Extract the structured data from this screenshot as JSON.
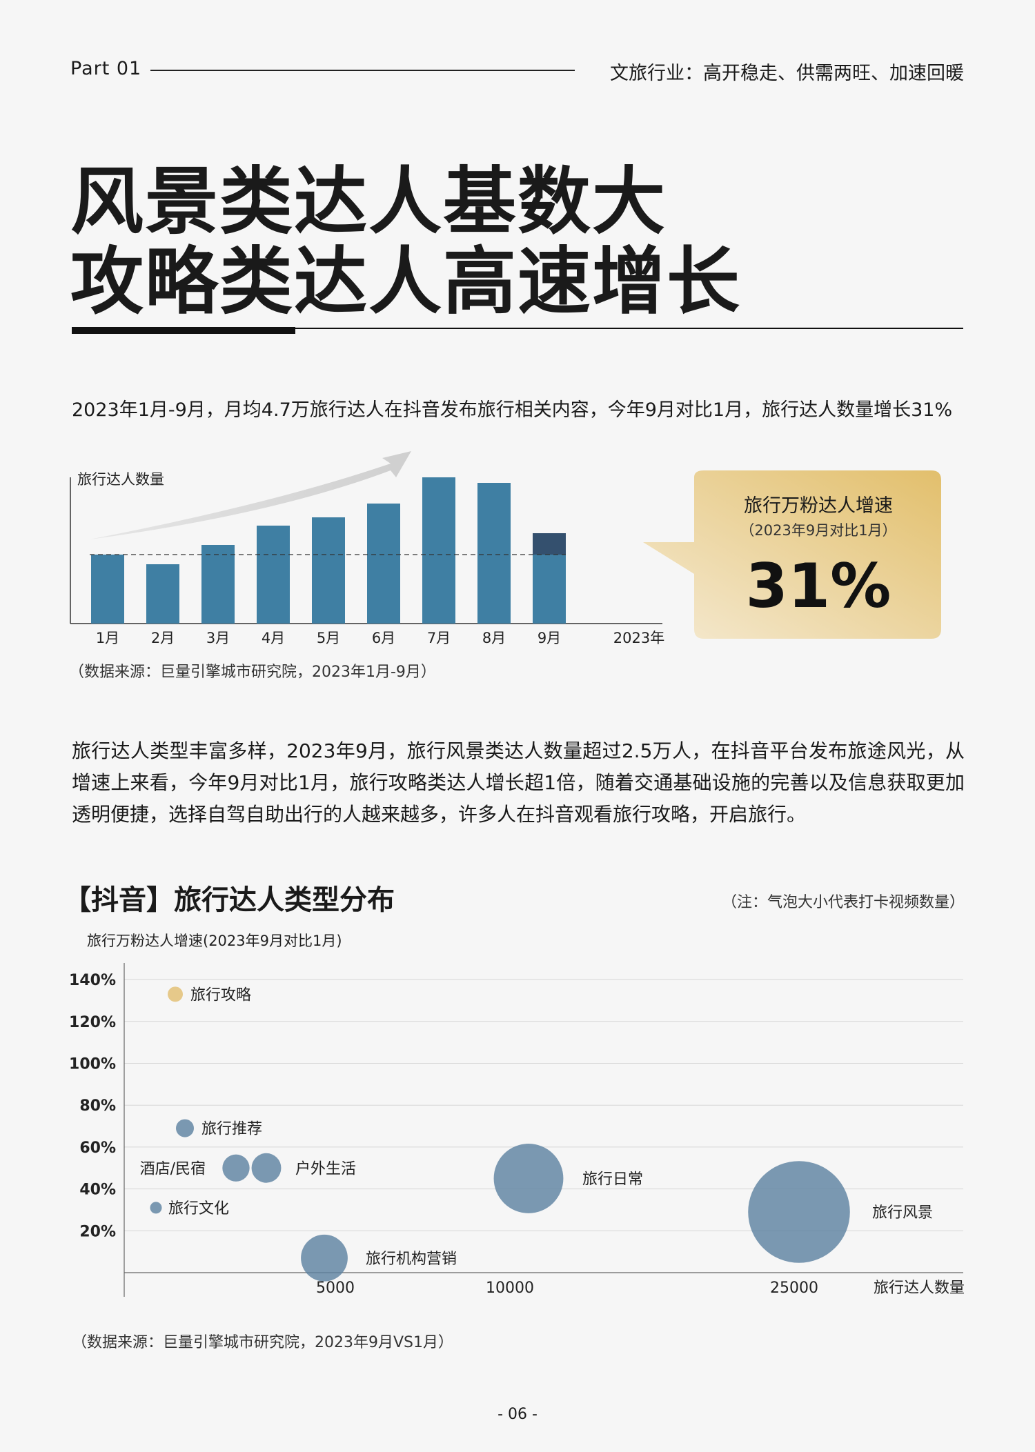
{
  "header": {
    "part": "Part 01",
    "tagline": "文旅行业：高开稳走、供需两旺、加速回暖"
  },
  "title": {
    "line1": "风景类达人基数大",
    "line2": "攻略类达人高速增长"
  },
  "intro": "2023年1月-9月，月均4.7万旅行达人在抖音发布旅行相关内容，今年9月对比1月，旅行达人数量增长31%",
  "chart_data": [
    {
      "type": "bar",
      "ylabel": "旅行达人数量",
      "categories": [
        "1月",
        "2月",
        "3月",
        "4月",
        "5月",
        "6月",
        "7月",
        "8月",
        "9月"
      ],
      "values": [
        100,
        86,
        114,
        142,
        154,
        174,
        212,
        204,
        131
      ],
      "x_extra_label": "2023年",
      "ylim": [
        0,
        220
      ],
      "reference_line": 100,
      "color": "#3f7fa3",
      "highlight_color": "#34506e"
    },
    {
      "type": "scatter",
      "ylabel": "旅行万粉达人增速(2023年9月对比1月)",
      "xlabel": "旅行达人数量",
      "y_ticks": [
        "20%",
        "40%",
        "60%",
        "80%",
        "100%",
        "120%",
        "140%"
      ],
      "x_ticks": [
        "5000",
        "10000",
        "25000"
      ],
      "points": [
        {
          "label": "旅行攻略",
          "y": 133,
          "size": 1,
          "color": "#e6c98a"
        },
        {
          "label": "旅行推荐",
          "y": 69,
          "size": 1.4,
          "color": "#5b81a0"
        },
        {
          "label": "酒店/民宿",
          "y": 50,
          "size": 3.2,
          "color": "#5b81a0"
        },
        {
          "label": "户外生活",
          "y": 50,
          "size": 3.8,
          "color": "#5b81a0"
        },
        {
          "label": "旅行文化",
          "y": 31,
          "size": 0.6,
          "color": "#5b81a0"
        },
        {
          "label": "旅行机构营销",
          "y": 7,
          "size": 9.5,
          "color": "#5b81a0"
        },
        {
          "label": "旅行日常",
          "y": 45,
          "size": 21,
          "color": "#5b81a0"
        },
        {
          "label": "旅行风景",
          "y": 29,
          "size": 45,
          "color": "#5b81a0"
        }
      ]
    }
  ],
  "source1": "（数据来源：巨量引擎城市研究院，2023年1月-9月）",
  "callout": {
    "title": "旅行万粉达人增速",
    "subtitle": "（2023年9月对比1月）",
    "value": "31%"
  },
  "paragraph": "旅行达人类型丰富多样，2023年9月，旅行风景类达人数量超过2.5万人，在抖音平台发布旅途风光，从增速上来看，今年9月对比1月，旅行攻略类达人增长超1倍，随着交通基础设施的完善以及信息获取更加透明便捷，选择自驾自助出行的人越来越多，许多人在抖音观看旅行攻略，开启旅行。",
  "section_title": "【抖音】旅行达人类型分布",
  "note": "（注：气泡大小代表打卡视频数量）",
  "source2": "（数据来源：巨量引擎城市研究院，2023年9月VS1月）",
  "page_number": "- 06 -"
}
